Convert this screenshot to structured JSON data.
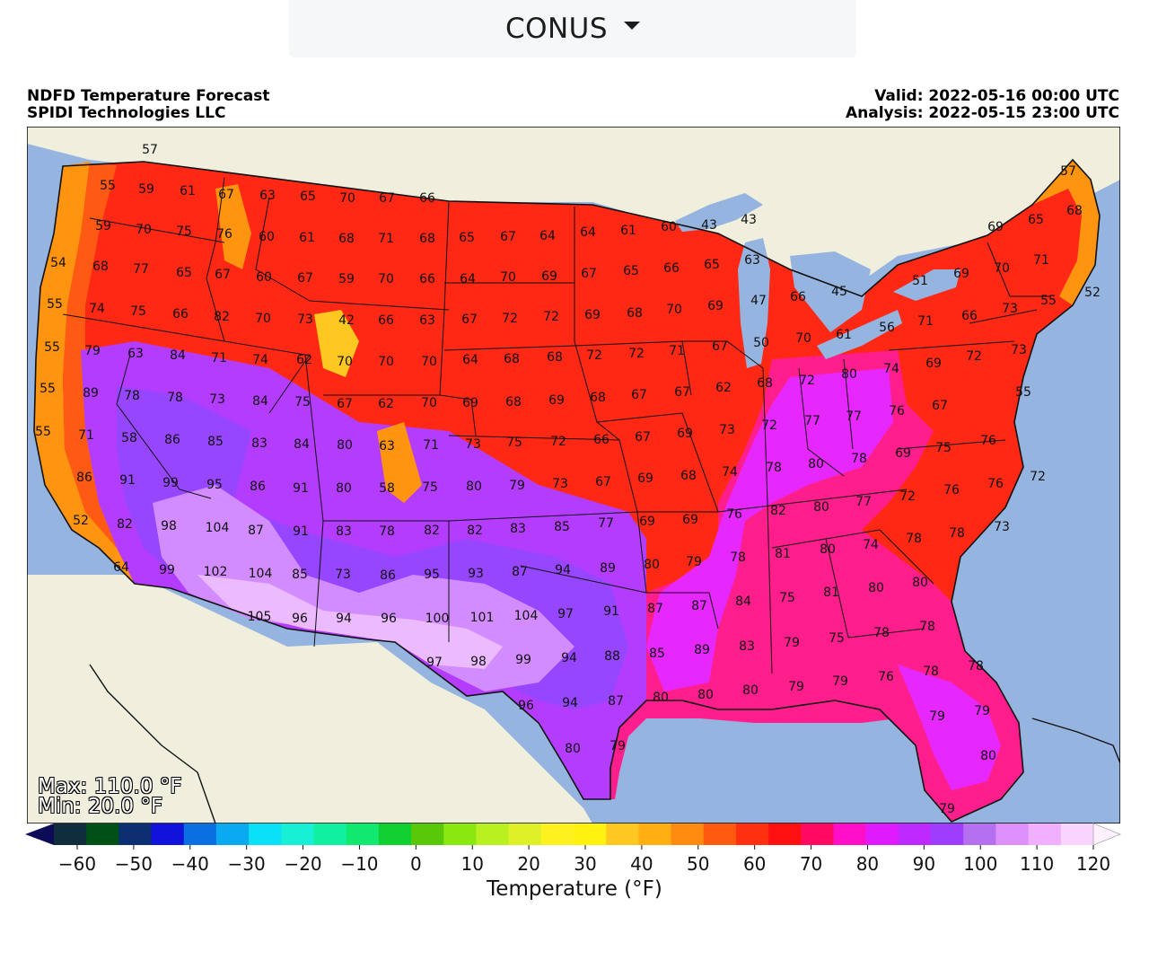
{
  "region_selector": {
    "label": "CONUS"
  },
  "header": {
    "title": "NDFD Temperature Forecast",
    "producer": "SPIDI Technologies LLC",
    "valid": "Valid: 2022-05-16 00:00 UTC",
    "analysis": "Analysis: 2022-05-15 23:00 UTC"
  },
  "stats": {
    "max": "Max: 110.0 °F",
    "min": "Min: 20.0 °F"
  },
  "colorbar": {
    "title": "Temperature (°F)",
    "ticks": [
      "−60",
      "−50",
      "−40",
      "−30",
      "−20",
      "−10",
      "0",
      "10",
      "20",
      "30",
      "40",
      "50",
      "60",
      "70",
      "80",
      "90",
      "100",
      "110",
      "120"
    ],
    "colors": [
      "#0b0b57",
      "#0f2d3a",
      "#005018",
      "#0b2f70",
      "#1212dd",
      "#0a6fe0",
      "#0aaaf0",
      "#0ae0f6",
      "#18f0d6",
      "#10f0a0",
      "#10e870",
      "#10d030",
      "#58c808",
      "#8ae810",
      "#b8f020",
      "#def028",
      "#fff020",
      "#fff210",
      "#ffc820",
      "#ffb010",
      "#ff8a10",
      "#ff5a10",
      "#ff3010",
      "#ff1010",
      "#ff0a60",
      "#ff10c8",
      "#e01aff",
      "#bd2aff",
      "#9d3eff",
      "#b570f0",
      "#df90ff",
      "#f0b0ff",
      "#f8d4ff",
      "#fff0ff"
    ]
  },
  "legend_colors": {
    "ocean": "#96b4e0",
    "land": "#f0eedc",
    "t60": "#ff9410",
    "t65": "#ff5a14",
    "t70": "#ff2814",
    "t75": "#ff1e46",
    "t80": "#ff1e8c",
    "t85": "#e628ff",
    "t90": "#b43cff",
    "t95": "#9646ff",
    "t100": "#d28cff",
    "t105": "#ebbaff"
  },
  "points": [
    [
      "57",
      167,
      166
    ],
    [
      "55",
      120,
      206
    ],
    [
      "59",
      163,
      210
    ],
    [
      "61",
      209,
      212
    ],
    [
      "67",
      252,
      216
    ],
    [
      "63",
      298,
      217
    ],
    [
      "65",
      343,
      218
    ],
    [
      "70",
      387,
      220
    ],
    [
      "67",
      431,
      220
    ],
    [
      "66",
      476,
      220
    ],
    [
      "59",
      115,
      251
    ],
    [
      "70",
      160,
      255
    ],
    [
      "75",
      205,
      257
    ],
    [
      "76",
      250,
      260
    ],
    [
      "60",
      297,
      263
    ],
    [
      "61",
      342,
      264
    ],
    [
      "68",
      386,
      265
    ],
    [
      "71",
      430,
      265
    ],
    [
      "68",
      476,
      265
    ],
    [
      "65",
      520,
      264
    ],
    [
      "67",
      566,
      263
    ],
    [
      "64",
      610,
      262
    ],
    [
      "64",
      655,
      258
    ],
    [
      "61",
      700,
      256
    ],
    [
      "60",
      745,
      252
    ],
    [
      "43",
      790,
      250
    ],
    [
      "43",
      834,
      244
    ],
    [
      "57",
      1190,
      190
    ],
    [
      "69",
      1109,
      252
    ],
    [
      "65",
      1154,
      244
    ],
    [
      "68",
      1197,
      234
    ],
    [
      "54",
      65,
      292
    ],
    [
      "68",
      112,
      296
    ],
    [
      "77",
      157,
      299
    ],
    [
      "65",
      205,
      303
    ],
    [
      "67",
      248,
      305
    ],
    [
      "60",
      294,
      308
    ],
    [
      "67",
      340,
      309
    ],
    [
      "59",
      386,
      310
    ],
    [
      "70",
      430,
      310
    ],
    [
      "66",
      476,
      310
    ],
    [
      "64",
      521,
      310
    ],
    [
      "70",
      566,
      308
    ],
    [
      "69",
      612,
      307
    ],
    [
      "67",
      656,
      304
    ],
    [
      "65",
      703,
      301
    ],
    [
      "66",
      748,
      298
    ],
    [
      "65",
      793,
      294
    ],
    [
      "63",
      838,
      289
    ],
    [
      "45",
      935,
      324
    ],
    [
      "66",
      889,
      330
    ],
    [
      "47",
      845,
      334
    ],
    [
      "51",
      1025,
      312
    ],
    [
      "69",
      1071,
      304
    ],
    [
      "70",
      1116,
      298
    ],
    [
      "71",
      1160,
      289
    ],
    [
      "52",
      1217,
      325
    ],
    [
      "55",
      61,
      338
    ],
    [
      "74",
      108,
      343
    ],
    [
      "75",
      154,
      346
    ],
    [
      "66",
      201,
      349
    ],
    [
      "82",
      247,
      352
    ],
    [
      "70",
      293,
      354
    ],
    [
      "73",
      340,
      355
    ],
    [
      "42",
      386,
      356
    ],
    [
      "66",
      430,
      356
    ],
    [
      "63",
      476,
      356
    ],
    [
      "67",
      523,
      355
    ],
    [
      "72",
      568,
      354
    ],
    [
      "72",
      614,
      352
    ],
    [
      "69",
      660,
      350
    ],
    [
      "68",
      707,
      348
    ],
    [
      "70",
      751,
      344
    ],
    [
      "69",
      797,
      340
    ],
    [
      "55",
      1168,
      334
    ],
    [
      "73",
      1125,
      343
    ],
    [
      "66",
      1080,
      351
    ],
    [
      "71",
      1031,
      357
    ],
    [
      "55",
      58,
      386
    ],
    [
      "79",
      103,
      390
    ],
    [
      "63",
      151,
      393
    ],
    [
      "84",
      198,
      395
    ],
    [
      "71",
      244,
      398
    ],
    [
      "74",
      290,
      400
    ],
    [
      "62",
      339,
      400
    ],
    [
      "70",
      384,
      402
    ],
    [
      "70",
      430,
      402
    ],
    [
      "70",
      478,
      402
    ],
    [
      "64",
      524,
      400
    ],
    [
      "68",
      570,
      399
    ],
    [
      "68",
      618,
      397
    ],
    [
      "72",
      662,
      395
    ],
    [
      "72",
      709,
      393
    ],
    [
      "71",
      754,
      390
    ],
    [
      "67",
      802,
      385
    ],
    [
      "50",
      848,
      381
    ],
    [
      "70",
      895,
      376
    ],
    [
      "61",
      940,
      372
    ],
    [
      "56",
      988,
      364
    ],
    [
      "73",
      1135,
      389
    ],
    [
      "72",
      1085,
      396
    ],
    [
      "69",
      1040,
      404
    ],
    [
      "74",
      993,
      410
    ],
    [
      "80",
      946,
      416
    ],
    [
      "72",
      899,
      423
    ],
    [
      "68",
      852,
      426
    ],
    [
      "55",
      53,
      432
    ],
    [
      "89",
      101,
      437
    ],
    [
      "78",
      147,
      440
    ],
    [
      "78",
      195,
      442
    ],
    [
      "73",
      242,
      444
    ],
    [
      "84",
      290,
      446
    ],
    [
      "75",
      337,
      447
    ],
    [
      "67",
      384,
      449
    ],
    [
      "62",
      430,
      449
    ],
    [
      "70",
      478,
      448
    ],
    [
      "69",
      524,
      448
    ],
    [
      "68",
      572,
      447
    ],
    [
      "69",
      620,
      445
    ],
    [
      "68",
      666,
      442
    ],
    [
      "67",
      712,
      439
    ],
    [
      "67",
      760,
      436
    ],
    [
      "62",
      806,
      431
    ],
    [
      "55",
      1140,
      436
    ],
    [
      "67",
      1047,
      451
    ],
    [
      "76",
      999,
      457
    ],
    [
      "77",
      951,
      463
    ],
    [
      "77",
      905,
      468
    ],
    [
      "55",
      48,
      480
    ],
    [
      "71",
      96,
      484
    ],
    [
      "58",
      144,
      487
    ],
    [
      "86",
      192,
      489
    ],
    [
      "85",
      240,
      491
    ],
    [
      "83",
      289,
      493
    ],
    [
      "84",
      336,
      494
    ],
    [
      "80",
      384,
      495
    ],
    [
      "63",
      431,
      496
    ],
    [
      "71",
      480,
      495
    ],
    [
      "73",
      527,
      494
    ],
    [
      "75",
      573,
      492
    ],
    [
      "72",
      622,
      491
    ],
    [
      "66",
      670,
      489
    ],
    [
      "67",
      716,
      486
    ],
    [
      "69",
      763,
      482
    ],
    [
      "73",
      810,
      478
    ],
    [
      "72",
      857,
      473
    ],
    [
      "75",
      1051,
      498
    ],
    [
      "76",
      1101,
      490
    ],
    [
      "69",
      1006,
      504
    ],
    [
      "78",
      957,
      510
    ],
    [
      "80",
      909,
      516
    ],
    [
      "78",
      862,
      520
    ],
    [
      "74",
      813,
      525
    ],
    [
      "86",
      94,
      531
    ],
    [
      "91",
      142,
      534
    ],
    [
      "99",
      190,
      537
    ],
    [
      "95",
      239,
      539
    ],
    [
      "86",
      287,
      541
    ],
    [
      "91",
      335,
      543
    ],
    [
      "80",
      383,
      543
    ],
    [
      "58",
      431,
      543
    ],
    [
      "75",
      479,
      542
    ],
    [
      "80",
      528,
      541
    ],
    [
      "79",
      576,
      540
    ],
    [
      "73",
      624,
      538
    ],
    [
      "67",
      672,
      536
    ],
    [
      "69",
      719,
      532
    ],
    [
      "68",
      767,
      529
    ],
    [
      "72",
      1156,
      530
    ],
    [
      "76",
      1109,
      538
    ],
    [
      "76",
      1060,
      545
    ],
    [
      "72",
      1011,
      552
    ],
    [
      "77",
      962,
      558
    ],
    [
      "80",
      915,
      564
    ],
    [
      "82",
      867,
      568
    ],
    [
      "76",
      818,
      572
    ],
    [
      "69",
      769,
      578
    ],
    [
      "69",
      721,
      580
    ],
    [
      "77",
      675,
      582
    ],
    [
      "52",
      90,
      579
    ],
    [
      "82",
      139,
      583
    ],
    [
      "98",
      188,
      585
    ],
    [
      "104",
      242,
      587
    ],
    [
      "87",
      285,
      590
    ],
    [
      "91",
      335,
      591
    ],
    [
      "83",
      383,
      591
    ],
    [
      "78",
      431,
      591
    ],
    [
      "82",
      481,
      590
    ],
    [
      "82",
      529,
      590
    ],
    [
      "83",
      577,
      588
    ],
    [
      "85",
      626,
      586
    ],
    [
      "73",
      1116,
      586
    ],
    [
      "78",
      1066,
      593
    ],
    [
      "78",
      1018,
      599
    ],
    [
      "74",
      970,
      606
    ],
    [
      "80",
      922,
      611
    ],
    [
      "81",
      872,
      616
    ],
    [
      "78",
      822,
      620
    ],
    [
      "79",
      773,
      625
    ],
    [
      "80",
      726,
      628
    ],
    [
      "89",
      677,
      632
    ],
    [
      "94",
      627,
      634
    ],
    [
      "87",
      579,
      636
    ],
    [
      "64",
      135,
      631
    ],
    [
      "99",
      186,
      634
    ],
    [
      "102",
      240,
      636
    ],
    [
      "104",
      290,
      638
    ],
    [
      "85",
      334,
      639
    ],
    [
      "73",
      382,
      639
    ],
    [
      "86",
      432,
      640
    ],
    [
      "95",
      481,
      639
    ],
    [
      "93",
      530,
      638
    ],
    [
      "80",
      1025,
      648
    ],
    [
      "80",
      976,
      654
    ],
    [
      "81",
      926,
      659
    ],
    [
      "75",
      877,
      665
    ],
    [
      "84",
      828,
      669
    ],
    [
      "87",
      779,
      674
    ],
    [
      "87",
      730,
      677
    ],
    [
      "91",
      681,
      680
    ],
    [
      "97",
      630,
      683
    ],
    [
      "104",
      586,
      685
    ],
    [
      "101",
      537,
      687
    ],
    [
      "100",
      487,
      688
    ],
    [
      "105",
      289,
      686
    ],
    [
      "96",
      334,
      688
    ],
    [
      "94",
      383,
      688
    ],
    [
      "96",
      433,
      688
    ],
    [
      "78",
      1033,
      697
    ],
    [
      "78",
      982,
      704
    ],
    [
      "75",
      932,
      710
    ],
    [
      "79",
      882,
      715
    ],
    [
      "83",
      832,
      719
    ],
    [
      "89",
      782,
      723
    ],
    [
      "85",
      732,
      727
    ],
    [
      "88",
      682,
      730
    ],
    [
      "94",
      634,
      732
    ],
    [
      "99",
      583,
      734
    ],
    [
      "98",
      533,
      736
    ],
    [
      "97",
      484,
      737
    ],
    [
      "78",
      1087,
      741
    ],
    [
      "78",
      1037,
      747
    ],
    [
      "76",
      987,
      753
    ],
    [
      "79",
      936,
      758
    ],
    [
      "79",
      887,
      764
    ],
    [
      "80",
      836,
      768
    ],
    [
      "80",
      786,
      773
    ],
    [
      "80",
      736,
      776
    ],
    [
      "87",
      686,
      780
    ],
    [
      "94",
      635,
      782
    ],
    [
      "96",
      586,
      785
    ],
    [
      "79",
      1094,
      791
    ],
    [
      "79",
      1044,
      797
    ],
    [
      "79",
      688,
      830
    ],
    [
      "80",
      638,
      833
    ],
    [
      "80",
      1101,
      841
    ],
    [
      "79",
      1055,
      900
    ]
  ]
}
